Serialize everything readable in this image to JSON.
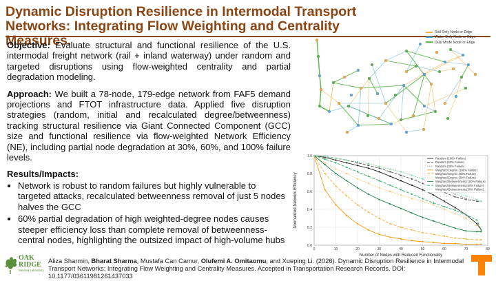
{
  "title": "Dynamic Disruption Resilience in Intermodal Transport Networks: Integrating Flow Weighting and Centrality Measures.",
  "objective": {
    "label": "Objective:",
    "text": "Evaluate structural and functional resilience of the U.S. intermodal freight network (rail + inland waterway) under random and targeted disruptions using flow-weighted centrality and partial degradation modeling."
  },
  "approach": {
    "label": "Approach:",
    "text": "We built a 78-node, 179-edge network from FAF5 demand projections and FTOT infrastructure data. Applied five disruption strategies (random, initial and recalculated degree/betweenness) tracking structural resilience via Giant Connected Component (GCC) size and functional resilience via flow-weighted Network Efficiency (NE), including partial node degradation at 30%, 60%, and 100% failure levels."
  },
  "results": {
    "label": "Results/Impacts:",
    "bullets": [
      "Network is robust to random failures but highly vulnerable to targeted attacks, recalculated betweenness removal of just 5 nodes halves the GCC",
      "60% partial degradation of high weighted-degree nodes causes steeper efficiency loss than complete removal of betweenness-central nodes, highlighting the outsized impact of high-volume hubs"
    ]
  },
  "citation": {
    "a1": "Aliza Sharmin, ",
    "a2": "Bharat Sharma",
    "a3": ", Mustafa Can Camur, ",
    "a4": "Olufemi A. Omitaomu",
    "a5": ", and Xueping Li. (2026). Dynamic Disruption Resilience in Intermodal Transport Networks: Integrating Flow Weighting and Centrality Measures. Accepted in Transportation Research Records. DOI: 10.1177/03611981261437033"
  },
  "logos": {
    "ornl_line1": "OAK",
    "ornl_line2": "RIDGE",
    "ornl_line3": "National Laboratory",
    "ut": "T"
  },
  "map_legend": [
    {
      "label": "Rail Only Node or Edge",
      "color": "#f5b041"
    },
    {
      "label": "Water Only Node or Edge",
      "color": "#5dade2"
    },
    {
      "label": "Dual Mode Node or Edge",
      "color": "#58b847"
    }
  ],
  "chart_data": {
    "type": "line",
    "xlabel": "Number of Nodes with Reduced Functionality",
    "ylabel": "Normalized Network Efficiency",
    "xlim": [
      0,
      80
    ],
    "ylim": [
      0.0,
      1.0
    ],
    "xticks": [
      0,
      10,
      20,
      30,
      40,
      50,
      60,
      70,
      80
    ],
    "yticks": [
      "0.0",
      "0.2",
      "0.4",
      "0.6",
      "0.8",
      "1.0"
    ],
    "grid": true,
    "legend_position": "top-right",
    "x": [
      0,
      5,
      10,
      15,
      20,
      25,
      30,
      35,
      40,
      45,
      50,
      55,
      60,
      65,
      70,
      75,
      77
    ],
    "series": [
      {
        "name": "Random (100% Failure)",
        "color": "#222222",
        "values": [
          1.0,
          0.98,
          0.95,
          0.92,
          0.89,
          0.86,
          0.82,
          0.77,
          0.72,
          0.67,
          0.62,
          0.56,
          0.49,
          0.42,
          0.34,
          0.24,
          0.17
        ]
      },
      {
        "name": "Random (60% Failure)",
        "color": "#555555",
        "values": [
          1.0,
          0.99,
          0.97,
          0.95,
          0.92,
          0.89,
          0.86,
          0.82,
          0.78,
          0.74,
          0.69,
          0.64,
          0.59,
          0.54,
          0.51,
          0.49,
          0.49
        ]
      },
      {
        "name": "Random (30% Failure)",
        "color": "#999999",
        "values": [
          1.0,
          0.99,
          0.97,
          0.95,
          0.93,
          0.91,
          0.88,
          0.85,
          0.82,
          0.78,
          0.74,
          0.68,
          0.63,
          0.57,
          0.52,
          0.5,
          0.49
        ]
      },
      {
        "name": "Weighted Degree (100% Failure)",
        "color": "#f39c12",
        "values": [
          1.0,
          0.62,
          0.45,
          0.33,
          0.24,
          0.17,
          0.12,
          0.09,
          0.07,
          0.05,
          0.04,
          0.03,
          0.02,
          0.02,
          0.01,
          0.01,
          0.01
        ]
      },
      {
        "name": "Weighted Degree (60% Failure)",
        "color": "#f5b041",
        "values": [
          1.0,
          0.8,
          0.66,
          0.55,
          0.45,
          0.37,
          0.3,
          0.24,
          0.2,
          0.17,
          0.14,
          0.12,
          0.1,
          0.08,
          0.07,
          0.06,
          0.06
        ]
      },
      {
        "name": "Weighted Degree (30% Failure)",
        "color": "#f8c471",
        "values": [
          1.0,
          0.92,
          0.85,
          0.8,
          0.74,
          0.69,
          0.64,
          0.6,
          0.56,
          0.52,
          0.49,
          0.45,
          0.4,
          0.35,
          0.3,
          0.22,
          0.17
        ]
      },
      {
        "name": "Weighted Betweenness (100% Failure)",
        "color": "#1e8449",
        "values": [
          1.0,
          0.9,
          0.8,
          0.72,
          0.64,
          0.57,
          0.51,
          0.46,
          0.41,
          0.36,
          0.31,
          0.27,
          0.23,
          0.19,
          0.16,
          0.15,
          0.15
        ]
      },
      {
        "name": "Weighted Betweenness (60% Failure)",
        "color": "#27ae60",
        "values": [
          1.0,
          0.96,
          0.92,
          0.87,
          0.82,
          0.77,
          0.72,
          0.67,
          0.62,
          0.57,
          0.52,
          0.47,
          0.43,
          0.39,
          0.34,
          0.28,
          0.17
        ]
      },
      {
        "name": "Weighted Betweenness (30% Failure)",
        "color": "#82e0aa",
        "values": [
          1.0,
          0.99,
          0.97,
          0.95,
          0.93,
          0.91,
          0.88,
          0.85,
          0.82,
          0.78,
          0.74,
          0.7,
          0.65,
          0.6,
          0.55,
          0.51,
          0.49
        ]
      }
    ]
  }
}
